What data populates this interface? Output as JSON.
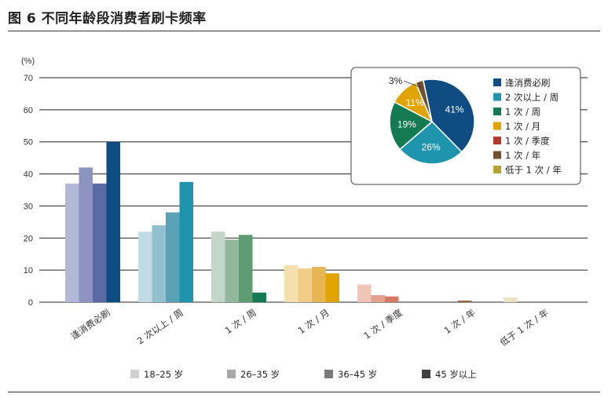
{
  "figure": {
    "title": "图 6  不同年龄段消费者刷卡频率"
  },
  "chart_data": [
    {
      "type": "bar",
      "ylabel": "(%)",
      "ylim": [
        0,
        70
      ],
      "yticks": [
        0,
        10,
        20,
        30,
        40,
        50,
        60,
        70
      ],
      "grid": true,
      "legend_position": "bottom",
      "categories": [
        "逢消费必刷",
        "2 次以上 / 周",
        "1 次 / 周",
        "1 次 / 月",
        "1 次 / 季度",
        "1 次 / 年",
        "低于 1 次 / 年"
      ],
      "legend_colors": [
        "#d0d0d0",
        "#a8a8a8",
        "#7a7a7a",
        "#404040"
      ],
      "category_palettes": [
        [
          "#b4b8d6",
          "#8c93be",
          "#5a6ba3",
          "#0f4c82"
        ],
        [
          "#c2dbe4",
          "#93c0cf",
          "#5aa3b6",
          "#1e95ad"
        ],
        [
          "#c3d6c7",
          "#93b79c",
          "#5f9c73",
          "#137a52"
        ],
        [
          "#f5dfae",
          "#f0cd86",
          "#e8b553",
          "#e0a300"
        ],
        [
          "#f0c4b6",
          "#e4a08e",
          "#d47a67",
          "#c75c4a"
        ],
        [
          "#c7b79f",
          "#aa9275",
          "#8c6b4b",
          "#6f5031"
        ],
        [
          "#eae4c3",
          "#d8d097",
          "#c6bb67",
          "#b5a536"
        ]
      ],
      "series": [
        {
          "name": "18–25 岁",
          "values": [
            37,
            22,
            22,
            11.5,
            5.5,
            0,
            1.5
          ]
        },
        {
          "name": "26–35 岁",
          "values": [
            42,
            24,
            19.5,
            10.5,
            2.2,
            0,
            0
          ]
        },
        {
          "name": "36–45 岁",
          "values": [
            37,
            28,
            21,
            11,
            1.8,
            0.5,
            0
          ]
        },
        {
          "name": "45 岁以上",
          "values": [
            50,
            37.5,
            3,
            9,
            0,
            0,
            0
          ]
        }
      ]
    },
    {
      "type": "pie",
      "labels": [
        "逢消费必刷",
        "2 次以上 / 周",
        "1 次 / 周",
        "1 次 / 月",
        "1 次 / 季度",
        "1 次 / 年",
        "低于 1 次 / 年"
      ],
      "values": [
        41,
        26,
        19,
        11,
        0,
        3,
        0
      ],
      "value_labels": [
        "41%",
        "26%",
        "19%",
        "11%",
        "",
        "3%",
        ""
      ],
      "colors": [
        "#0f4c82",
        "#1e95ad",
        "#137a52",
        "#e0a300",
        "#b33a2a",
        "#6f5031",
        "#b5a536"
      ],
      "legend_position": "right"
    }
  ]
}
